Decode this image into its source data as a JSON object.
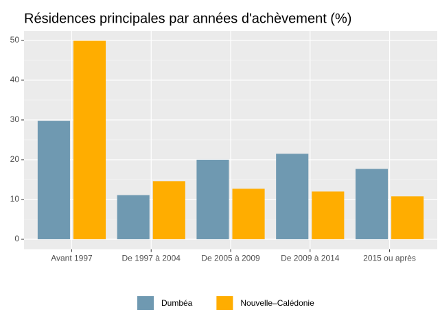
{
  "chart_data": {
    "type": "bar",
    "title": "Résidences principales par années d'achèvement (%)",
    "categories": [
      "Avant 1997",
      "De 1997 à 2004",
      "De 2005 à 2009",
      "De 2009 à 2014",
      "2015 ou après"
    ],
    "series": [
      {
        "name": "Dumbéa",
        "color": "#6f99b1",
        "values": [
          29.8,
          11.1,
          20.0,
          21.5,
          17.7
        ]
      },
      {
        "name": "Nouvelle–Calédonie",
        "color": "#ffad00",
        "values": [
          49.9,
          14.6,
          12.7,
          12.0,
          10.8
        ]
      }
    ],
    "ylim": [
      -2.5,
      52.4
    ],
    "yticks": [
      0,
      10,
      20,
      30,
      40,
      50
    ],
    "grid": true,
    "legend": "bottom"
  }
}
